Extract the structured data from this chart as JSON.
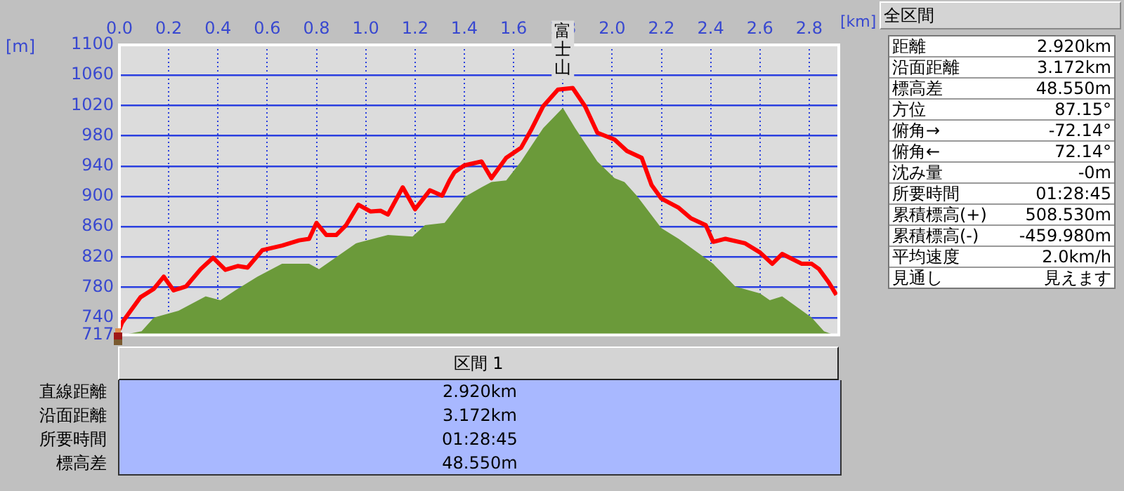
{
  "chart_data": [
    {
      "type": "line",
      "xlabel": "[km]",
      "ylabel": "[m]",
      "xlim": [
        0,
        2.92
      ],
      "xticks": [
        {
          "value": 0,
          "label": "0.0"
        },
        0.2,
        0.4,
        0.6,
        0.8,
        {
          "value": 1,
          "label": "1.0"
        },
        1.2,
        1.4,
        1.6,
        1.8,
        {
          "value": 2,
          "label": "2.0"
        },
        2.2,
        2.4,
        2.6,
        2.8
      ],
      "ylim": [
        717,
        1100
      ],
      "yticks": [
        717,
        740,
        780,
        820,
        860,
        900,
        940,
        980,
        1020,
        1060,
        1100
      ],
      "grid": true,
      "legend": false,
      "marker": "none",
      "annotations": [
        {
          "text": "富士山",
          "x": 1.8,
          "y": 1043
        }
      ],
      "series": [
        {
          "type": "area",
          "color": "#6b9a3a",
          "x": [
            0,
            0.03,
            0.09,
            0.14,
            0.24,
            0.35,
            0.41,
            0.47,
            0.56,
            0.66,
            0.77,
            0.81,
            0.96,
            1.09,
            1.19,
            1.24,
            1.32,
            1.4,
            1.47,
            1.51,
            1.57,
            1.63,
            1.72,
            1.8,
            1.85,
            1.94,
            2.01,
            2.05,
            2.1,
            2.2,
            2.27,
            2.41,
            2.5,
            2.6,
            2.64,
            2.69,
            2.81,
            2.86,
            2.9,
            2.92
          ],
          "values": [
            717,
            718,
            722,
            740,
            749,
            768,
            763,
            776,
            794,
            811,
            811,
            804,
            838,
            849,
            847,
            862,
            865,
            899,
            912,
            919,
            921,
            946,
            990,
            1017,
            990,
            946,
            924,
            919,
            901,
            858,
            844,
            811,
            781,
            772,
            763,
            768,
            740,
            722,
            717,
            717
          ]
        },
        {
          "type": "line",
          "color": "#ff0000",
          "x": [
            0,
            0.01,
            0.086,
            0.14,
            0.18,
            0.22,
            0.27,
            0.33,
            0.38,
            0.43,
            0.48,
            0.52,
            0.58,
            0.66,
            0.73,
            0.77,
            0.8,
            0.84,
            0.88,
            0.92,
            0.97,
            1.02,
            1.06,
            1.09,
            1.15,
            1.2,
            1.26,
            1.31,
            1.34,
            1.36,
            1.4,
            1.47,
            1.51,
            1.57,
            1.63,
            1.67,
            1.72,
            1.78,
            1.84,
            1.89,
            1.94,
            2.01,
            2.06,
            2.12,
            2.16,
            2.2,
            2.27,
            2.32,
            2.38,
            2.41,
            2.46,
            2.54,
            2.6,
            2.65,
            2.69,
            2.77,
            2.81,
            2.84,
            2.88,
            2.91
          ],
          "values": [
            724,
            733,
            767,
            778,
            794,
            776,
            781,
            804,
            819,
            803,
            808,
            806,
            829,
            835,
            842,
            844,
            865,
            849,
            849,
            862,
            889,
            880,
            881,
            876,
            912,
            883,
            908,
            901,
            921,
            932,
            941,
            946,
            924,
            951,
            964,
            987,
            1019,
            1041,
            1043,
            1019,
            984,
            975,
            960,
            951,
            915,
            897,
            885,
            871,
            862,
            840,
            844,
            838,
            826,
            811,
            824,
            811,
            811,
            804,
            786,
            770
          ]
        }
      ]
    },
    {
      "type": "other",
      "title": "全区間",
      "annotations": [
        "距離",
        "2.920km",
        "沿面距離",
        "3.172km",
        "標高差",
        "48.550m",
        "方位",
        "87.15°",
        "俯角→",
        "-72.14°",
        "俯角←",
        "72.14°",
        "沈み量",
        "-0m",
        "所要時間",
        "01:28:45",
        "累積標高(+)",
        "508.530m",
        "累積標高(-)",
        "-459.980m",
        "平均速度",
        "2.0km/h",
        "見通し",
        "見えます"
      ]
    },
    {
      "type": "other",
      "title": "区間 1",
      "annotations": [
        "直線距離",
        "2.920km",
        "沿面距離",
        "3.172km",
        "所要時間",
        "01:28:45",
        "標高差",
        "48.550m"
      ]
    }
  ]
}
